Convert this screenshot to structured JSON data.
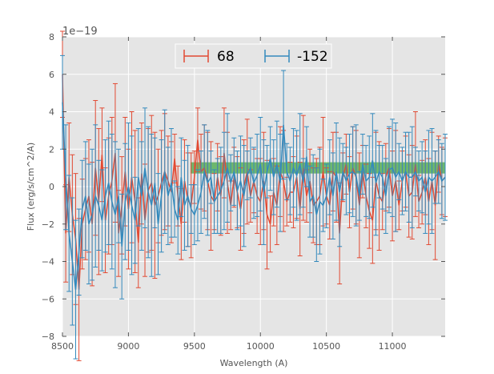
{
  "chart_data": {
    "type": "line",
    "title": "",
    "xlabel": "Wavelength (A)",
    "ylabel": "Flux (erg/s/cm^2/A)",
    "y_offset_label": "1e−19",
    "xlim": [
      8500,
      11400
    ],
    "ylim": [
      -8,
      8
    ],
    "y_scale": "1e-19",
    "x_ticks": [
      8500,
      9000,
      9500,
      10000,
      10500,
      11000
    ],
    "x_tick_labels": [
      "8500",
      "9000",
      "9500",
      "10000",
      "10500",
      "11000"
    ],
    "y_ticks": [
      -8,
      -6,
      -4,
      -2,
      0,
      2,
      4,
      6,
      8
    ],
    "y_tick_labels": [
      "−8",
      "−6",
      "−4",
      "−2",
      "0",
      "2",
      "4",
      "6",
      "8"
    ],
    "grid": true,
    "legend_position": "top-center",
    "band": {
      "x_start": 9470,
      "x_end": 11400,
      "y_low": 0.7,
      "y_high": 1.3,
      "color": "#2ca02c"
    },
    "colors": {
      "series_68": "#e24a33",
      "series_m152": "#348abd",
      "plot_bg": "#e5e5e5",
      "grid": "#ffffff"
    },
    "series": [
      {
        "name": "68",
        "color": "#e24a33",
        "x_start": 8500,
        "x_step": 25,
        "values": [
          6.0,
          -2.5,
          0.5,
          -1.5,
          -2.8,
          -5.5,
          -2.0,
          -1.2,
          -0.5,
          -2.0,
          1.0,
          -0.8,
          1.7,
          -1.8,
          -0.5,
          0.3,
          1.8,
          -2.5,
          -1.0,
          0.8,
          -1.2,
          0.5,
          -0.8,
          -3.0,
          0.7,
          -1.8,
          -0.2,
          0.2,
          -1.0,
          -0.5,
          0.2,
          0.8,
          0.3,
          -0.3,
          1.5,
          -0.5,
          -2.0,
          0.3,
          -0.7,
          -1.0,
          0.5,
          2.5,
          0.8,
          1.0,
          0.3,
          -0.5,
          -0.8,
          0.5,
          -0.5,
          1.8,
          0.2,
          -1.0,
          0.5,
          -0.3,
          -1.2,
          0.0,
          0.8,
          -0.5,
          0.3,
          -0.5,
          -0.8,
          0.3,
          -1.5,
          -2.0,
          -0.3,
          -1.0,
          0.8,
          0.3,
          -0.8,
          -0.3,
          -0.3,
          0.5,
          -1.2,
          1.0,
          -0.5,
          0.3,
          -1.0,
          -0.8,
          -0.5,
          0.8,
          -0.5,
          -1.0,
          0.8,
          0.5,
          -2.5,
          0.5,
          1.2,
          -0.3,
          1.0,
          0.5,
          -1.0,
          0.8,
          -0.5,
          -1.3,
          -1.8,
          0.3,
          -0.5,
          -0.8,
          0.5,
          1.0,
          -0.5,
          0.3,
          -1.0,
          0.3,
          0.8,
          -0.5,
          -0.3,
          1.2,
          -0.8,
          -0.3,
          0.5,
          -0.8,
          0.3,
          -1.0,
          1.2,
          0.3,
          0.5
        ]
      },
      {
        "name": "-152",
        "color": "#348abd",
        "x_start": 8500,
        "x_step": 25,
        "values": [
          4.5,
          0.5,
          -2.5,
          -4.0,
          -5.5,
          -3.5,
          -1.2,
          -0.5,
          -2.0,
          -1.5,
          -0.5,
          -1.0,
          -1.8,
          -0.5,
          0.2,
          -0.8,
          -1.5,
          -0.5,
          -3.2,
          -0.8,
          0.0,
          -1.0,
          -1.8,
          0.5,
          -0.5,
          1.0,
          -0.3,
          -1.0,
          0.2,
          -2.0,
          -0.5,
          0.8,
          -0.5,
          0.2,
          -1.2,
          -1.8,
          0.5,
          -1.0,
          -0.5,
          -1.2,
          -1.5,
          -1.0,
          -0.3,
          0.8,
          0.2,
          0.5,
          -0.8,
          -0.5,
          -0.2,
          0.3,
          1.0,
          0.2,
          0.8,
          -0.2,
          0.3,
          -0.5,
          0.6,
          1.0,
          0.2,
          0.6,
          1.2,
          -0.3,
          0.8,
          1.5,
          0.5,
          1.2,
          0.2,
          3.3,
          0.8,
          0.3,
          1.0,
          0.6,
          1.2,
          0.2,
          1.6,
          -0.8,
          -0.5,
          -1.5,
          -0.8,
          -1.0,
          -0.5,
          0.5,
          -0.5,
          0.8,
          -0.3,
          0.8,
          0.3,
          0.7,
          0.8,
          0.6,
          -0.5,
          1.2,
          0.3,
          0.5,
          1.4,
          0.2,
          0.8,
          0.5,
          -0.5,
          0.9,
          1.0,
          0.5,
          0.8,
          0.3,
          0.8,
          0.5,
          0.5,
          0.8,
          0.3,
          0.5,
          -0.3,
          0.5,
          0.3,
          0.5,
          0.8,
          0.3,
          0.5
        ]
      }
    ]
  }
}
